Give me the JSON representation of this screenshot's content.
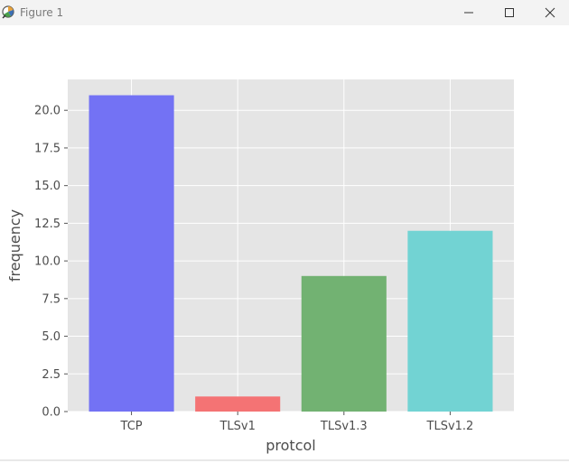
{
  "window": {
    "title": "Figure 1",
    "icon": "matplotlib-figure-icon",
    "controls": [
      "minimize-icon",
      "maximize-icon",
      "close-icon"
    ]
  },
  "chart_data": {
    "type": "bar",
    "title": "",
    "xlabel": "protcol",
    "ylabel": "frequency",
    "categories": [
      "TCP",
      "TLSv1",
      "TLSv1.3",
      "TLSv1.2"
    ],
    "values": [
      21,
      1,
      9,
      12
    ],
    "colors": [
      "#7372f4",
      "#f47374",
      "#72b272",
      "#72d3d3"
    ],
    "ylim": [
      0,
      22.05
    ],
    "yticks": [
      0.0,
      2.5,
      5.0,
      7.5,
      10.0,
      12.5,
      15.0,
      17.5,
      20.0
    ],
    "ytick_labels": [
      "0.0",
      "2.5",
      "5.0",
      "7.5",
      "10.0",
      "12.5",
      "15.0",
      "17.5",
      "20.0"
    ],
    "grid": true,
    "style": "ggplot",
    "axes_background": "#e5e5e5",
    "grid_color": "#ffffff"
  }
}
